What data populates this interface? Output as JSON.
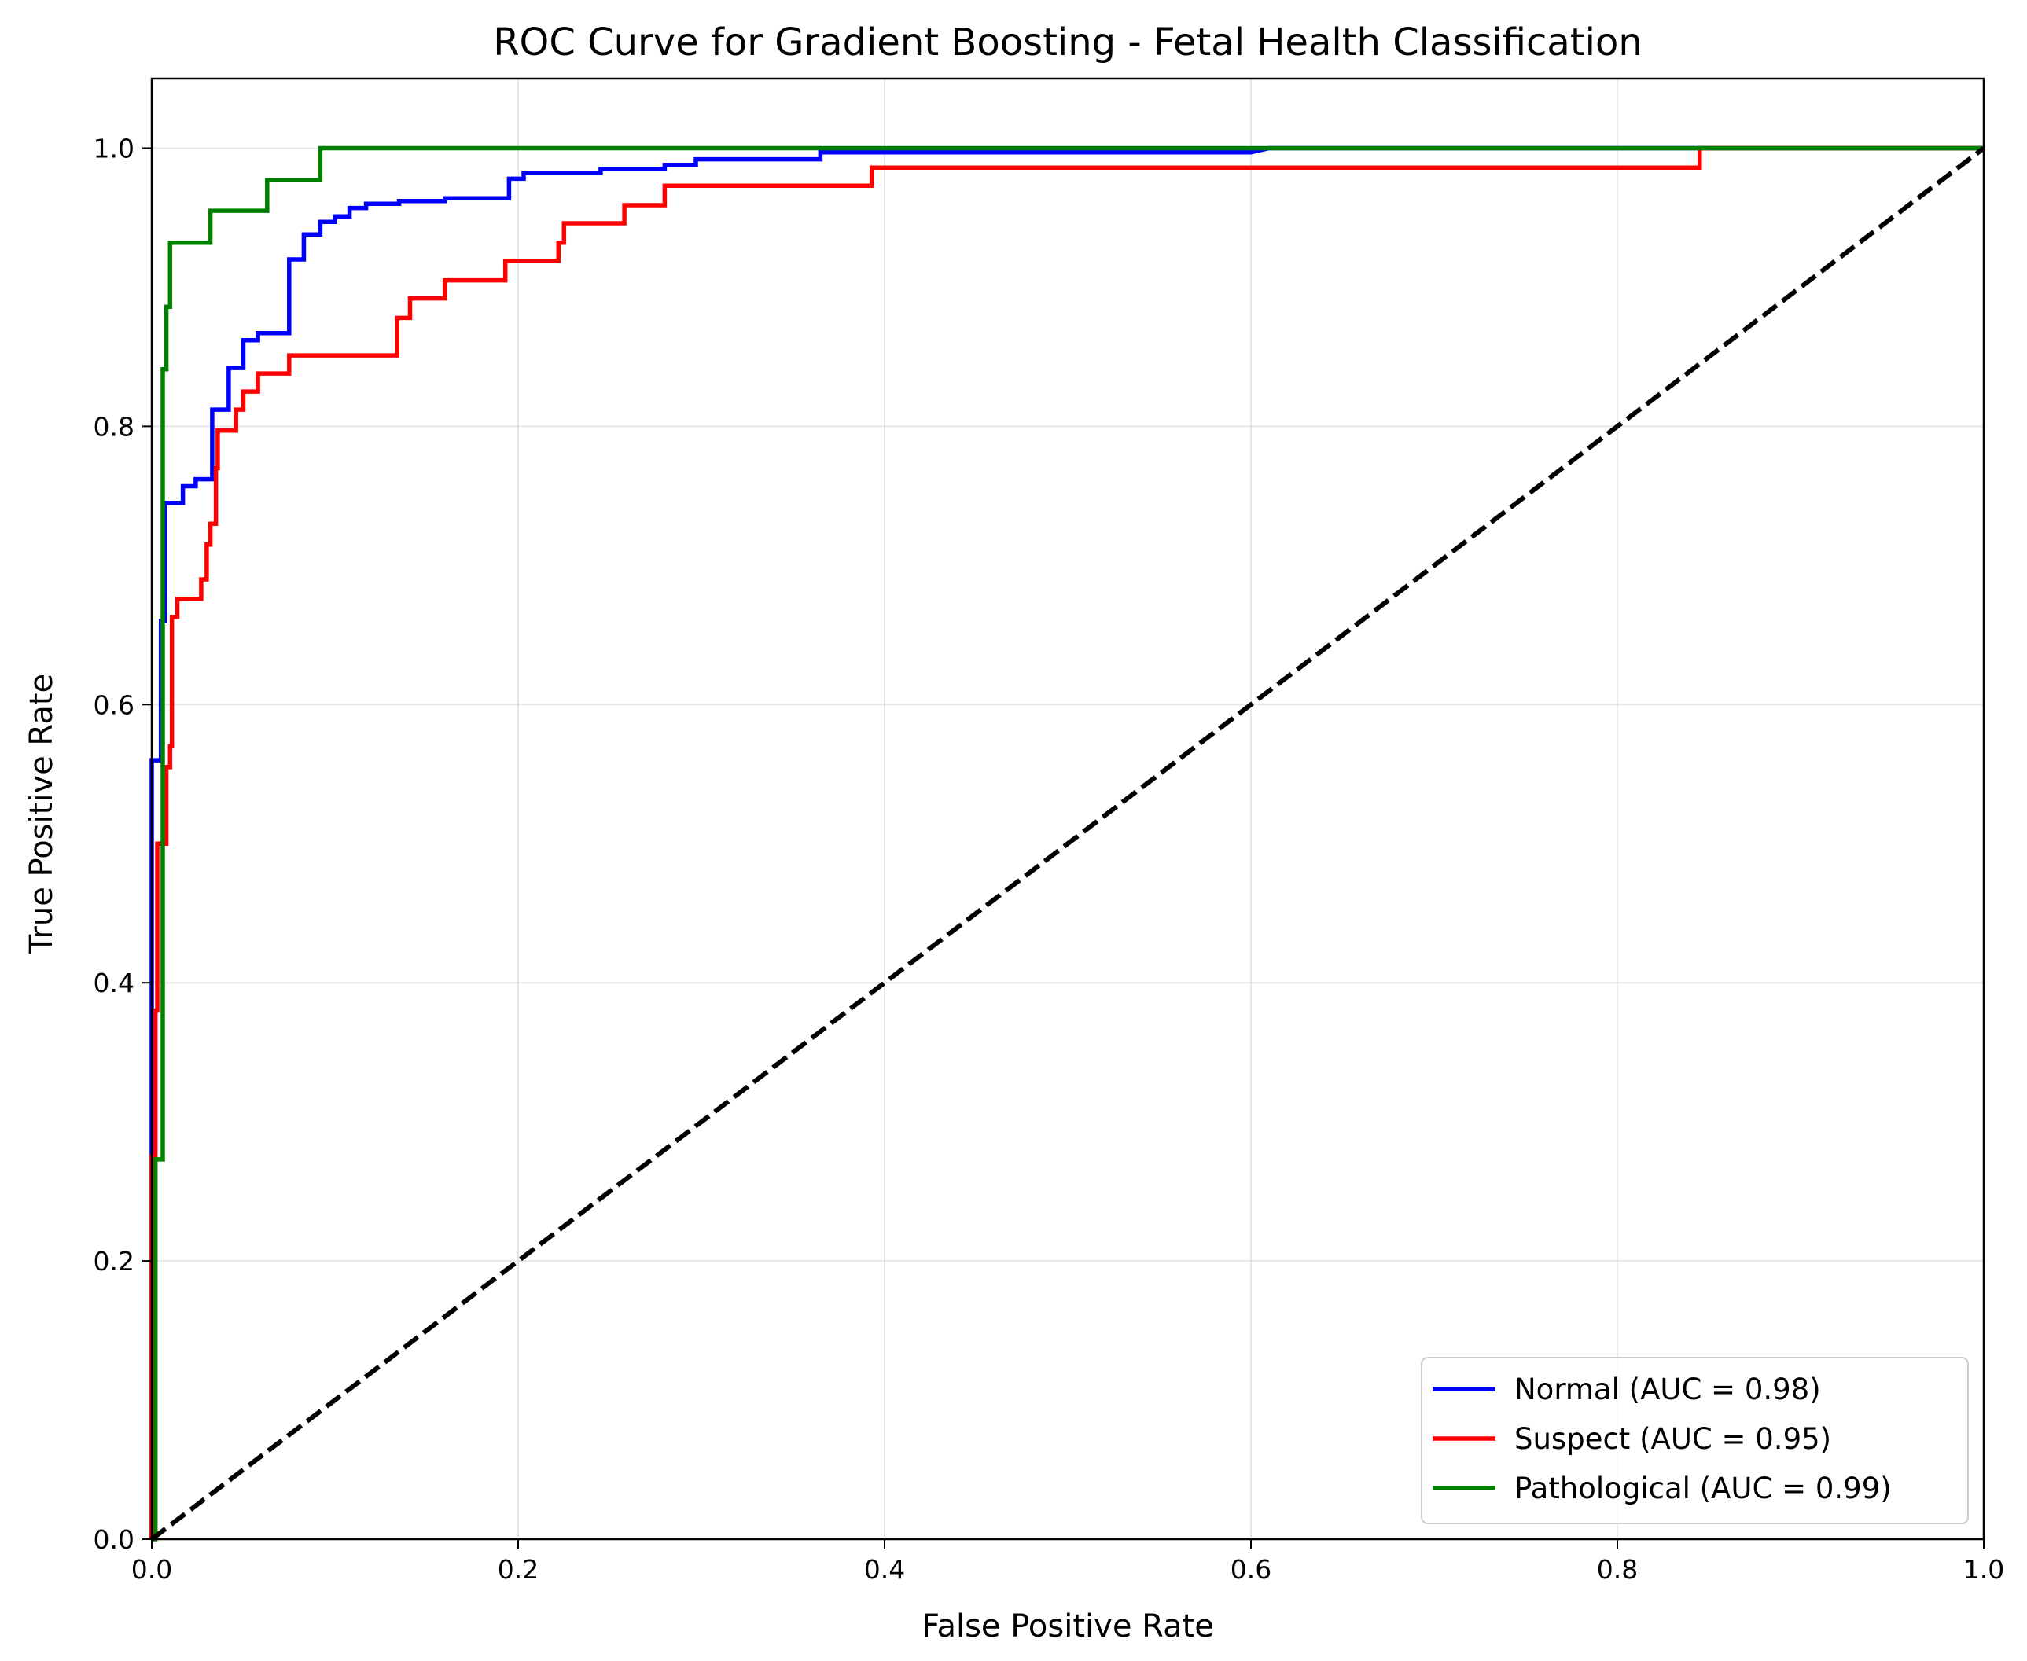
{
  "chart_data": {
    "type": "line",
    "title": "ROC Curve for Gradient Boosting - Fetal Health Classification",
    "xlabel": "False Positive Rate",
    "ylabel": "True Positive Rate",
    "xlim": [
      0.0,
      1.0
    ],
    "ylim": [
      0.0,
      1.05
    ],
    "xticks": [
      "0.0",
      "0.2",
      "0.4",
      "0.6",
      "0.8",
      "1.0"
    ],
    "yticks": [
      "0.0",
      "0.2",
      "0.4",
      "0.6",
      "0.8",
      "1.0"
    ],
    "grid": true,
    "legend_position": "lower-right",
    "series": [
      {
        "name": "Normal (AUC = 0.98)",
        "color": "#0000ff",
        "points": [
          [
            0.0,
            0.0
          ],
          [
            0.0,
            0.56
          ],
          [
            0.005,
            0.56
          ],
          [
            0.005,
            0.66
          ],
          [
            0.007,
            0.66
          ],
          [
            0.007,
            0.745
          ],
          [
            0.017,
            0.745
          ],
          [
            0.017,
            0.757
          ],
          [
            0.024,
            0.757
          ],
          [
            0.024,
            0.762
          ],
          [
            0.033,
            0.762
          ],
          [
            0.033,
            0.812
          ],
          [
            0.042,
            0.812
          ],
          [
            0.042,
            0.842
          ],
          [
            0.05,
            0.842
          ],
          [
            0.05,
            0.862
          ],
          [
            0.058,
            0.862
          ],
          [
            0.058,
            0.867
          ],
          [
            0.075,
            0.867
          ],
          [
            0.075,
            0.92
          ],
          [
            0.083,
            0.92
          ],
          [
            0.083,
            0.938
          ],
          [
            0.092,
            0.938
          ],
          [
            0.092,
            0.947
          ],
          [
            0.1,
            0.947
          ],
          [
            0.1,
            0.951
          ],
          [
            0.108,
            0.951
          ],
          [
            0.108,
            0.957
          ],
          [
            0.117,
            0.957
          ],
          [
            0.117,
            0.96
          ],
          [
            0.135,
            0.96
          ],
          [
            0.135,
            0.962
          ],
          [
            0.16,
            0.962
          ],
          [
            0.16,
            0.964
          ],
          [
            0.195,
            0.964
          ],
          [
            0.195,
            0.978
          ],
          [
            0.203,
            0.978
          ],
          [
            0.203,
            0.982
          ],
          [
            0.245,
            0.982
          ],
          [
            0.245,
            0.985
          ],
          [
            0.28,
            0.985
          ],
          [
            0.28,
            0.988
          ],
          [
            0.297,
            0.988
          ],
          [
            0.297,
            0.992
          ],
          [
            0.365,
            0.992
          ],
          [
            0.365,
            0.997
          ],
          [
            0.6,
            0.997
          ],
          [
            0.61,
            1.0
          ],
          [
            1.0,
            1.0
          ]
        ]
      },
      {
        "name": "Suspect (AUC = 0.95)",
        "color": "#ff0000",
        "points": [
          [
            0.0,
            0.0
          ],
          [
            0.0,
            0.275
          ],
          [
            0.002,
            0.275
          ],
          [
            0.002,
            0.38
          ],
          [
            0.003,
            0.38
          ],
          [
            0.003,
            0.5
          ],
          [
            0.008,
            0.5
          ],
          [
            0.008,
            0.555
          ],
          [
            0.01,
            0.555
          ],
          [
            0.01,
            0.57
          ],
          [
            0.011,
            0.57
          ],
          [
            0.011,
            0.663
          ],
          [
            0.014,
            0.663
          ],
          [
            0.014,
            0.676
          ],
          [
            0.027,
            0.676
          ],
          [
            0.027,
            0.69
          ],
          [
            0.03,
            0.69
          ],
          [
            0.03,
            0.715
          ],
          [
            0.032,
            0.715
          ],
          [
            0.032,
            0.73
          ],
          [
            0.035,
            0.73
          ],
          [
            0.035,
            0.77
          ],
          [
            0.036,
            0.77
          ],
          [
            0.036,
            0.797
          ],
          [
            0.046,
            0.797
          ],
          [
            0.046,
            0.812
          ],
          [
            0.05,
            0.812
          ],
          [
            0.05,
            0.825
          ],
          [
            0.058,
            0.825
          ],
          [
            0.058,
            0.838
          ],
          [
            0.075,
            0.838
          ],
          [
            0.075,
            0.851
          ],
          [
            0.134,
            0.851
          ],
          [
            0.134,
            0.878
          ],
          [
            0.141,
            0.878
          ],
          [
            0.141,
            0.892
          ],
          [
            0.16,
            0.892
          ],
          [
            0.16,
            0.905
          ],
          [
            0.193,
            0.905
          ],
          [
            0.193,
            0.919
          ],
          [
            0.222,
            0.919
          ],
          [
            0.222,
            0.932
          ],
          [
            0.225,
            0.932
          ],
          [
            0.225,
            0.946
          ],
          [
            0.258,
            0.946
          ],
          [
            0.258,
            0.959
          ],
          [
            0.28,
            0.959
          ],
          [
            0.28,
            0.973
          ],
          [
            0.393,
            0.973
          ],
          [
            0.393,
            0.986
          ],
          [
            0.845,
            0.986
          ],
          [
            0.845,
            1.0
          ],
          [
            1.0,
            1.0
          ]
        ]
      },
      {
        "name": "Pathological (AUC = 0.99)",
        "color": "#008000",
        "points": [
          [
            0.0,
            0.0
          ],
          [
            0.002,
            0.0
          ],
          [
            0.002,
            0.273
          ],
          [
            0.006,
            0.273
          ],
          [
            0.006,
            0.5
          ],
          [
            0.006,
            0.841
          ],
          [
            0.008,
            0.841
          ],
          [
            0.008,
            0.886
          ],
          [
            0.01,
            0.886
          ],
          [
            0.01,
            0.932
          ],
          [
            0.032,
            0.932
          ],
          [
            0.032,
            0.955
          ],
          [
            0.063,
            0.955
          ],
          [
            0.063,
            0.977
          ],
          [
            0.092,
            0.977
          ],
          [
            0.092,
            1.0
          ],
          [
            1.0,
            1.0
          ]
        ]
      },
      {
        "name": "",
        "color": "#000000",
        "dashed": true,
        "points": [
          [
            0.0,
            0.0
          ],
          [
            1.0,
            1.0
          ]
        ]
      }
    ]
  }
}
